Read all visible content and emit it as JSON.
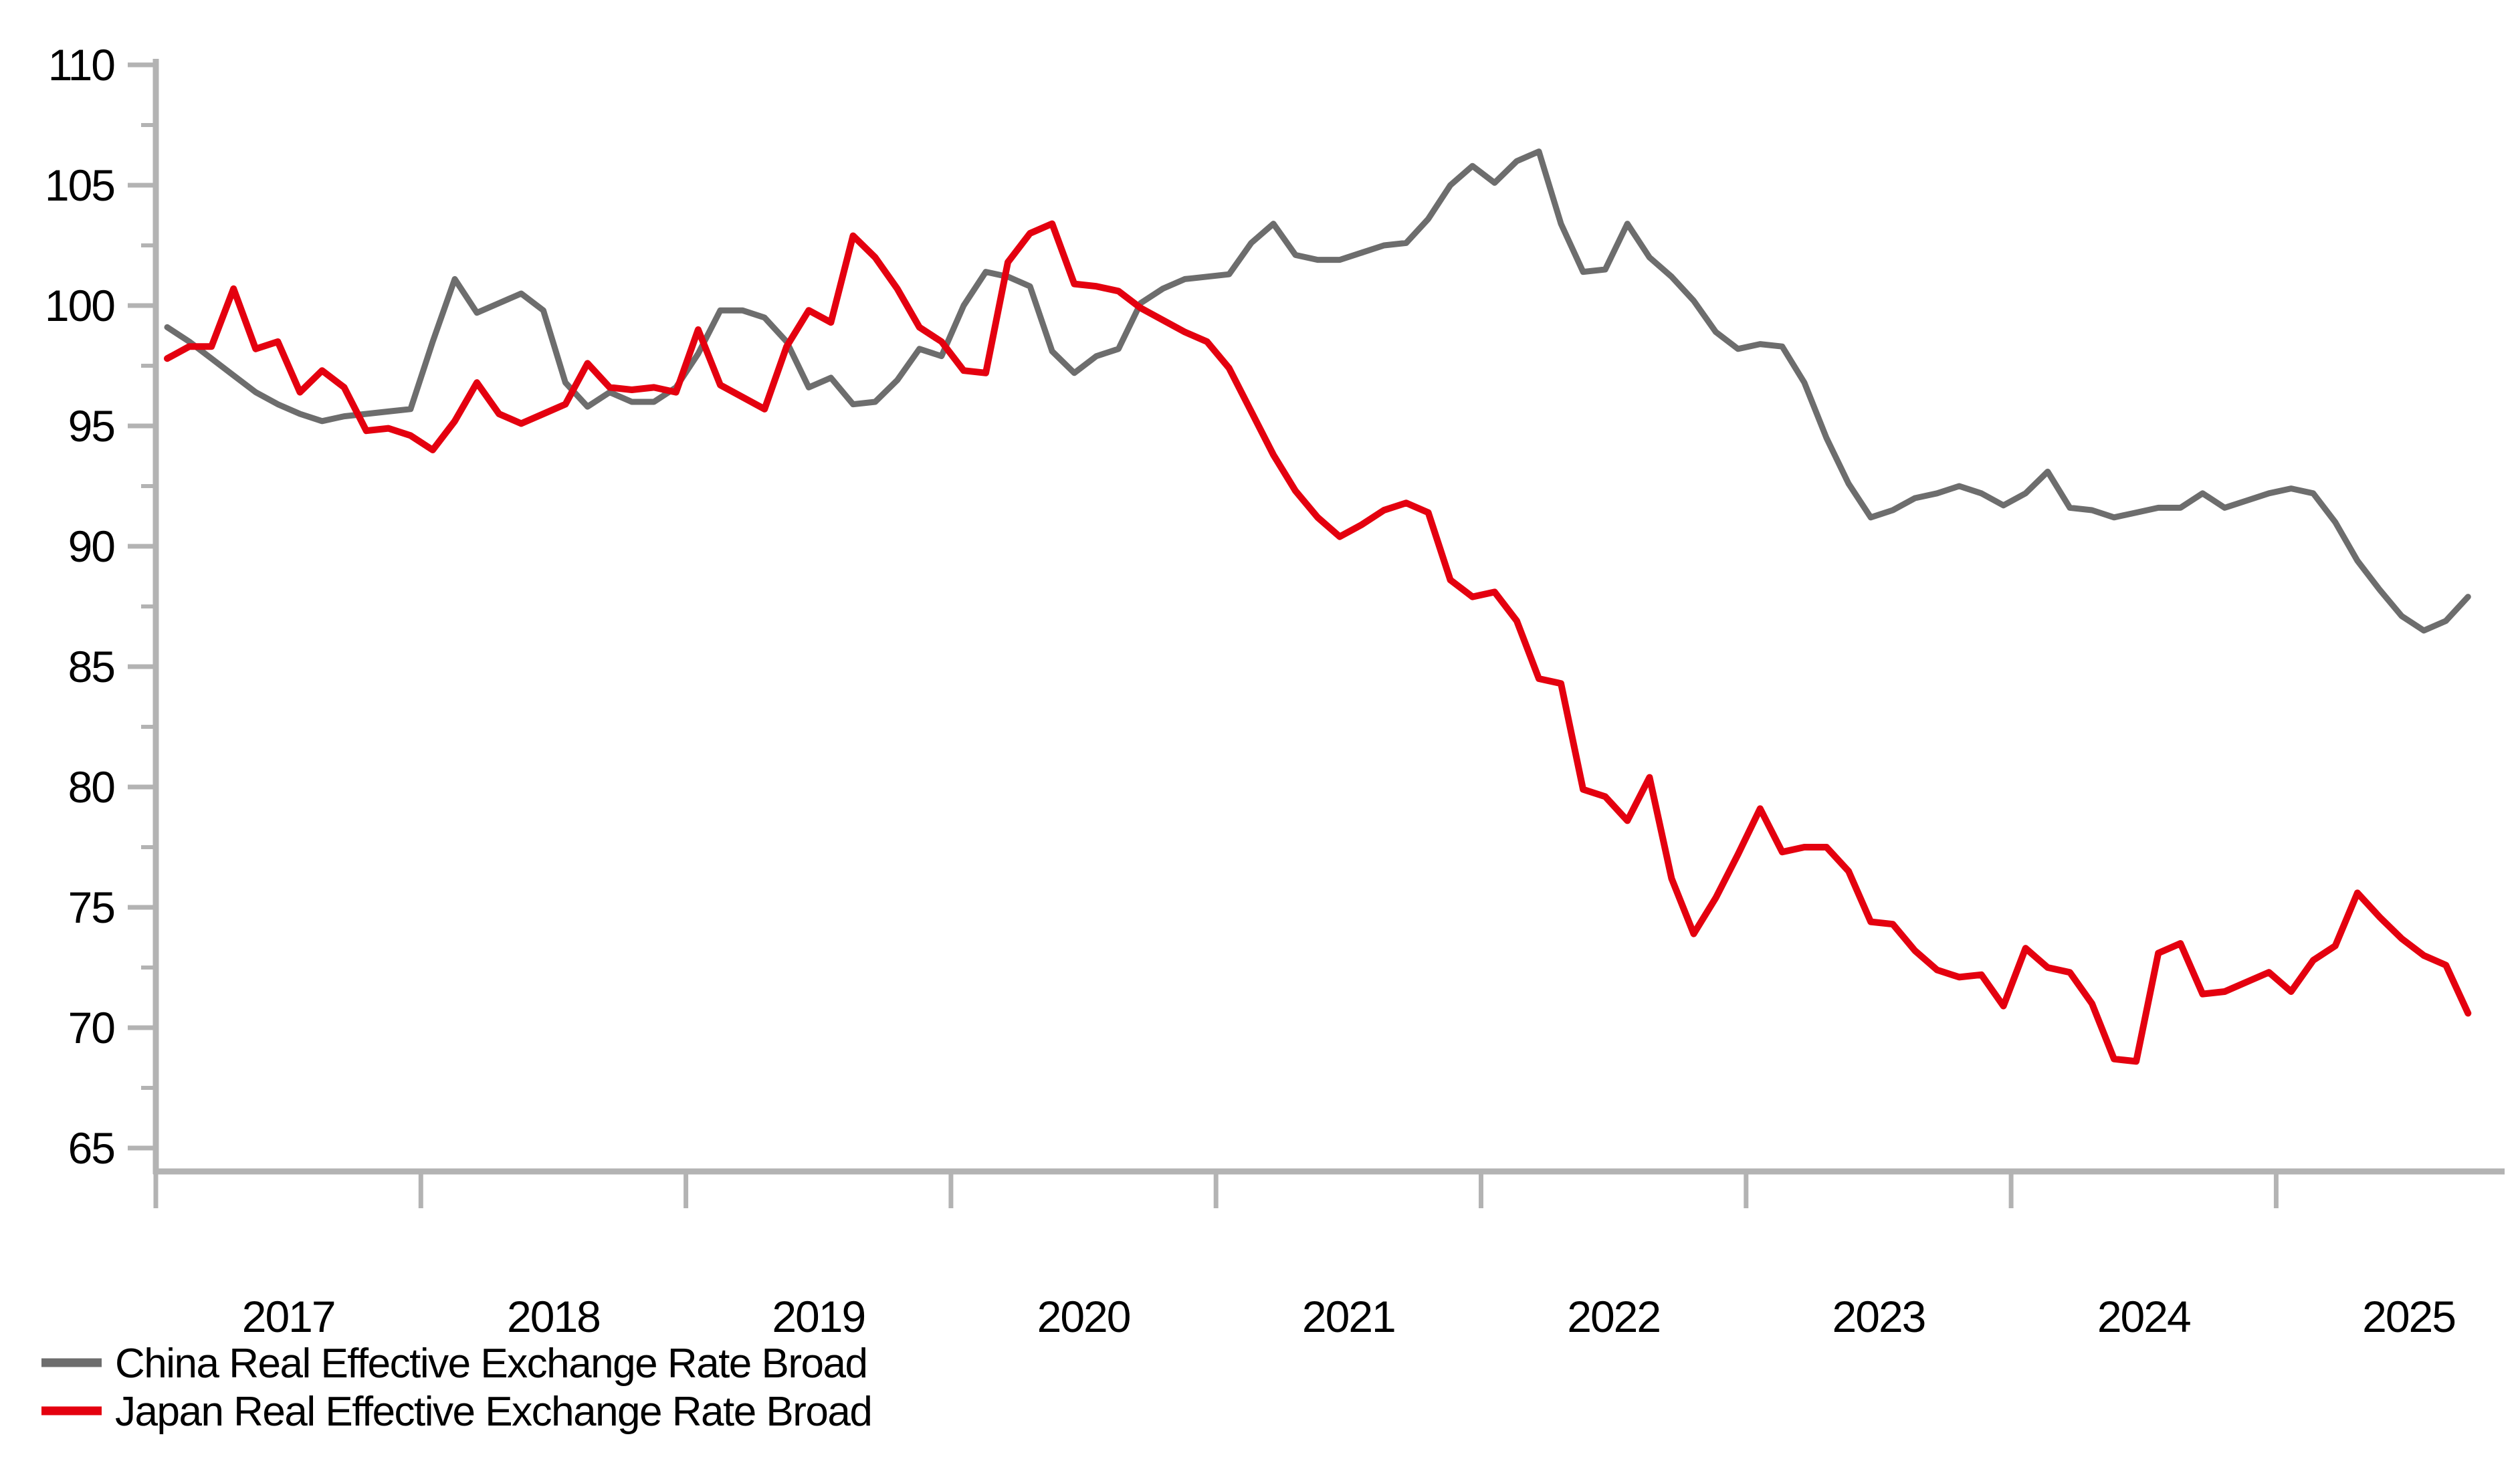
{
  "chart_data": {
    "type": "line",
    "title": "",
    "grid": "off",
    "legend_position": "bottom-left",
    "x_axis": {
      "start": "2017-01",
      "frequency": "monthly",
      "tick_labels": [
        "2017",
        "2018",
        "2019",
        "2020",
        "2021",
        "2022",
        "2023",
        "2024",
        "2025"
      ]
    },
    "y_axis": {
      "min": 65,
      "max": 110,
      "major_step": 5,
      "minor_step": 2.5,
      "tick_labels": [
        "110",
        "105",
        "100",
        "95",
        "90",
        "85",
        "80",
        "75",
        "70",
        "65"
      ]
    },
    "ylim": [
      63.9,
      110.5
    ],
    "colors": {
      "axis": "#b3b3b3",
      "china": "#6d6d6d",
      "japan": "#e4000f",
      "text": "#000000"
    },
    "series": [
      {
        "name": "China Real Effective Exchange Rate Broad",
        "color": "#6d6d6d",
        "values": [
          99.1,
          98.5,
          97.8,
          97.1,
          96.4,
          95.9,
          95.5,
          95.2,
          95.4,
          95.5,
          95.6,
          95.7,
          98.5,
          101.1,
          99.7,
          100.1,
          100.5,
          99.8,
          96.8,
          95.8,
          96.4,
          96.0,
          96.0,
          96.6,
          98.0,
          99.8,
          99.8,
          99.5,
          98.5,
          96.6,
          97.0,
          95.9,
          96.0,
          96.9,
          98.2,
          97.9,
          100.0,
          101.4,
          101.2,
          100.8,
          98.1,
          97.2,
          97.9,
          98.2,
          100.1,
          100.7,
          101.1,
          101.2,
          101.3,
          102.6,
          103.4,
          102.1,
          101.9,
          101.9,
          102.2,
          102.5,
          102.6,
          103.6,
          105.0,
          105.8,
          105.1,
          106.0,
          106.4,
          103.4,
          101.4,
          101.5,
          103.4,
          102.0,
          101.2,
          100.2,
          98.9,
          98.2,
          98.4,
          98.3,
          96.8,
          94.5,
          92.6,
          91.2,
          91.5,
          92.0,
          92.2,
          92.5,
          92.2,
          91.7,
          92.2,
          93.1,
          91.6,
          91.5,
          91.2,
          91.4,
          91.6,
          91.6,
          92.2,
          91.6,
          91.9,
          92.2,
          92.4,
          92.2,
          91.0,
          89.4,
          88.2,
          87.1,
          86.5,
          86.9,
          87.9
        ]
      },
      {
        "name": "Japan Real Effective Exchange Rate Broad",
        "color": "#e4000f",
        "values": [
          97.8,
          98.3,
          98.3,
          100.7,
          98.2,
          98.5,
          96.4,
          97.3,
          96.6,
          94.8,
          94.9,
          94.6,
          94.0,
          95.2,
          96.8,
          95.5,
          95.1,
          95.5,
          95.9,
          97.6,
          96.6,
          96.5,
          96.6,
          96.4,
          99.0,
          96.7,
          96.2,
          95.7,
          98.3,
          99.8,
          99.3,
          102.9,
          102.0,
          100.7,
          99.1,
          98.5,
          97.3,
          97.2,
          101.8,
          103.0,
          103.4,
          100.9,
          100.8,
          100.6,
          99.9,
          99.4,
          98.9,
          98.5,
          97.4,
          95.6,
          93.8,
          92.3,
          91.2,
          90.4,
          90.9,
          91.5,
          91.8,
          91.4,
          88.6,
          87.9,
          88.1,
          86.9,
          84.5,
          84.3,
          79.9,
          79.6,
          78.6,
          80.4,
          76.2,
          73.9,
          75.4,
          77.2,
          79.1,
          77.3,
          77.5,
          77.5,
          76.5,
          74.4,
          74.3,
          73.2,
          72.4,
          72.1,
          72.2,
          70.9,
          73.3,
          72.5,
          72.3,
          71.0,
          68.7,
          68.6,
          73.1,
          73.5,
          71.4,
          71.5,
          71.9,
          72.3,
          71.5,
          72.8,
          73.4,
          75.6,
          74.6,
          73.7,
          73.0,
          72.6,
          70.6
        ]
      }
    ]
  },
  "legend": {
    "items": [
      {
        "label": "China Real Effective Exchange Rate Broad",
        "color": "#6d6d6d"
      },
      {
        "label": "Japan Real Effective Exchange Rate Broad",
        "color": "#e4000f"
      }
    ]
  }
}
